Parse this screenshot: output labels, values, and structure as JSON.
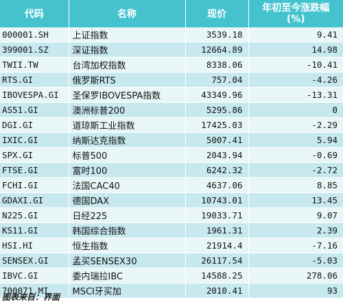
{
  "headers": {
    "code": "代码",
    "name": "名称",
    "price": "现价",
    "change_line1": "年初至今涨跌幅",
    "change_line2": "(%)"
  },
  "rows": [
    {
      "code": "000001.SH",
      "name": "上证指数",
      "price": "3539.18",
      "change": "9.41"
    },
    {
      "code": "399001.SZ",
      "name": "深证指数",
      "price": "12664.89",
      "change": "14.98"
    },
    {
      "code": "TWII.TW",
      "name": "台湾加权指数",
      "price": "8338.06",
      "change": "-10.41"
    },
    {
      "code": "RTS.GI",
      "name": "俄罗斯RTS",
      "price": "757.04",
      "change": "-4.26"
    },
    {
      "code": "IBOVESPA.GI",
      "name": "圣保罗IBOVESPA指数",
      "price": "43349.96",
      "change": "-13.31"
    },
    {
      "code": "AS51.GI",
      "name": "澳洲标普200",
      "price": "5295.86",
      "change": "0"
    },
    {
      "code": "DGI.GI",
      "name": "道琼斯工业指数",
      "price": "17425.03",
      "change": "-2.29"
    },
    {
      "code": "IXIC.GI",
      "name": "纳斯达克指数",
      "price": "5007.41",
      "change": "5.94"
    },
    {
      "code": "SPX.GI",
      "name": "标普500",
      "price": "2043.94",
      "change": "-0.69"
    },
    {
      "code": "FTSE.GI",
      "name": "富时100",
      "price": "6242.32",
      "change": "-2.72"
    },
    {
      "code": "FCHI.GI",
      "name": "法国CAC40",
      "price": "4637.06",
      "change": "8.85"
    },
    {
      "code": "GDAXI.GI",
      "name": "德国DAX",
      "price": "10743.01",
      "change": "13.45"
    },
    {
      "code": "N225.GI",
      "name": "日经225",
      "price": "19033.71",
      "change": "9.07"
    },
    {
      "code": "KS11.GI",
      "name": "韩国综合指数",
      "price": "1961.31",
      "change": "2.39"
    },
    {
      "code": "HSI.HI",
      "name": "恒生指数",
      "price": "21914.4",
      "change": "-7.16"
    },
    {
      "code": "SENSEX.GI",
      "name": "孟买SENSEX30",
      "price": "26117.54",
      "change": "-5.03"
    },
    {
      "code": "IBVC.GI",
      "name": "委内瑞拉IBC",
      "price": "14588.25",
      "change": "278.06"
    },
    {
      "code": "700071.MI",
      "name": "MSCI牙买加",
      "price": "2010.41",
      "change": "93"
    }
  ],
  "source": "图表来自：界面",
  "colors": {
    "header_bg": "#44c3cf",
    "row_light": "#e9f6f8",
    "row_dark": "#c6e8ee"
  }
}
